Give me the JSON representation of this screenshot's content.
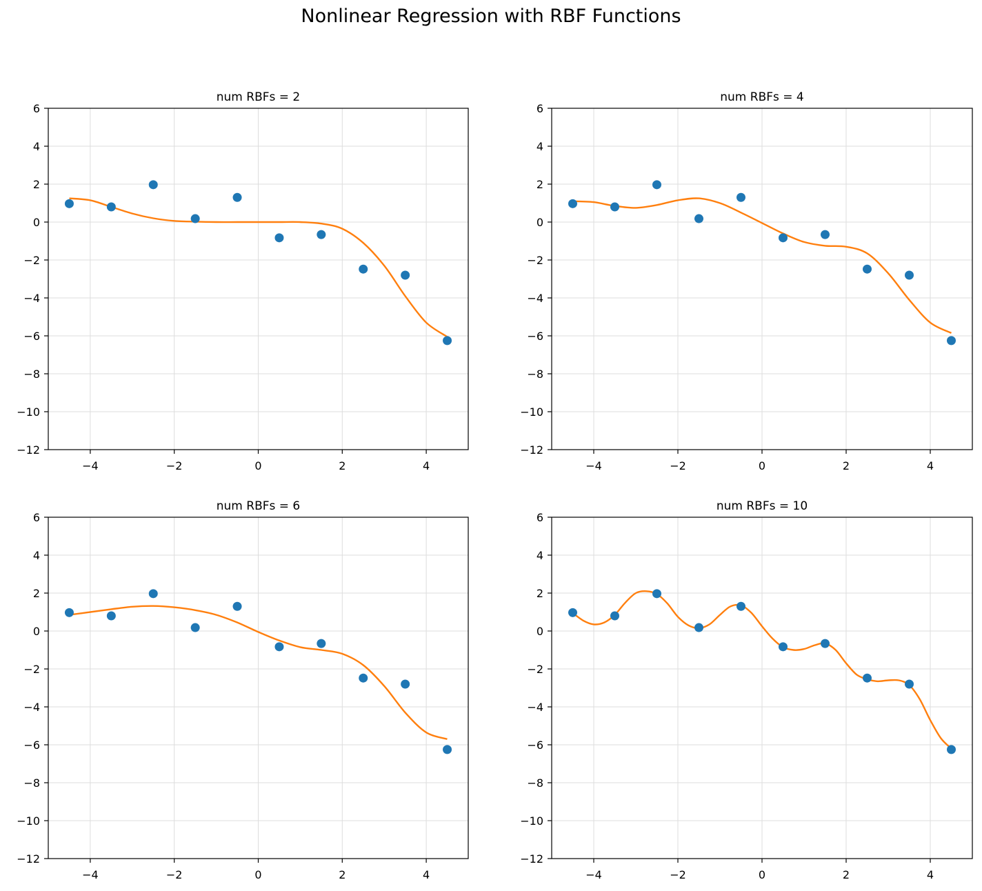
{
  "figure": {
    "title": "Nonlinear Regression with RBF Functions"
  },
  "colors": {
    "points": "#1f77b4",
    "fit_line": "#ff7f0e",
    "grid": "#dddddd",
    "axes": "#000000"
  },
  "chart_data": [
    {
      "type": "line",
      "title": "num RBFs = 2",
      "xlim": [
        -5,
        5
      ],
      "ylim": [
        -12,
        6
      ],
      "xticks": [
        -4,
        -2,
        0,
        2,
        4
      ],
      "yticks": [
        -12,
        -10,
        -8,
        -6,
        -4,
        -2,
        0,
        2,
        4,
        6
      ],
      "grid": true,
      "series": [
        {
          "kind": "scatter",
          "x": [
            -4.5,
            -3.5,
            -2.5,
            -1.5,
            -0.5,
            0.5,
            1.5,
            2.5,
            3.5,
            4.5
          ],
          "y": [
            0.97,
            0.8,
            1.97,
            0.18,
            1.3,
            -0.83,
            -0.66,
            -2.48,
            -2.8,
            -6.25
          ]
        },
        {
          "kind": "line",
          "x": [
            -4.5,
            -4.0,
            -3.5,
            -3.0,
            -2.5,
            -2.0,
            -1.5,
            -1.0,
            -0.5,
            0.0,
            0.5,
            1.0,
            1.5,
            2.0,
            2.5,
            3.0,
            3.5,
            4.0,
            4.5
          ],
          "y": [
            1.25,
            1.15,
            0.8,
            0.45,
            0.2,
            0.06,
            0.02,
            0.0,
            0.0,
            0.0,
            0.0,
            0.0,
            -0.08,
            -0.35,
            -1.1,
            -2.3,
            -3.9,
            -5.3,
            -6.05
          ]
        }
      ]
    },
    {
      "type": "line",
      "title": "num RBFs = 4",
      "xlim": [
        -5,
        5
      ],
      "ylim": [
        -12,
        6
      ],
      "xticks": [
        -4,
        -2,
        0,
        2,
        4
      ],
      "yticks": [
        -12,
        -10,
        -8,
        -6,
        -4,
        -2,
        0,
        2,
        4,
        6
      ],
      "grid": true,
      "series": [
        {
          "kind": "scatter",
          "x": [
            -4.5,
            -3.5,
            -2.5,
            -1.5,
            -0.5,
            0.5,
            1.5,
            2.5,
            3.5,
            4.5
          ],
          "y": [
            0.97,
            0.8,
            1.97,
            0.18,
            1.3,
            -0.83,
            -0.66,
            -2.48,
            -2.8,
            -6.25
          ]
        },
        {
          "kind": "line",
          "x": [
            -4.5,
            -4.0,
            -3.5,
            -3.0,
            -2.5,
            -2.0,
            -1.5,
            -1.0,
            -0.5,
            0.0,
            0.5,
            1.0,
            1.5,
            2.0,
            2.5,
            3.0,
            3.5,
            4.0,
            4.5
          ],
          "y": [
            1.1,
            1.05,
            0.85,
            0.75,
            0.9,
            1.15,
            1.25,
            1.0,
            0.5,
            -0.05,
            -0.6,
            -1.05,
            -1.25,
            -1.3,
            -1.65,
            -2.7,
            -4.1,
            -5.3,
            -5.85
          ]
        }
      ]
    },
    {
      "type": "line",
      "title": "num RBFs = 6",
      "xlim": [
        -5,
        5
      ],
      "ylim": [
        -12,
        6
      ],
      "xticks": [
        -4,
        -2,
        0,
        2,
        4
      ],
      "yticks": [
        -12,
        -10,
        -8,
        -6,
        -4,
        -2,
        0,
        2,
        4,
        6
      ],
      "grid": true,
      "series": [
        {
          "kind": "scatter",
          "x": [
            -4.5,
            -3.5,
            -2.5,
            -1.5,
            -0.5,
            0.5,
            1.5,
            2.5,
            3.5,
            4.5
          ],
          "y": [
            0.97,
            0.8,
            1.97,
            0.18,
            1.3,
            -0.83,
            -0.66,
            -2.48,
            -2.8,
            -6.25
          ]
        },
        {
          "kind": "line",
          "x": [
            -4.5,
            -4.0,
            -3.5,
            -3.0,
            -2.5,
            -2.0,
            -1.5,
            -1.0,
            -0.5,
            0.0,
            0.5,
            1.0,
            1.5,
            2.0,
            2.5,
            3.0,
            3.5,
            4.0,
            4.5
          ],
          "y": [
            0.85,
            1.0,
            1.15,
            1.28,
            1.32,
            1.25,
            1.1,
            0.85,
            0.45,
            -0.05,
            -0.5,
            -0.85,
            -1.0,
            -1.2,
            -1.8,
            -2.9,
            -4.3,
            -5.35,
            -5.7
          ]
        }
      ]
    },
    {
      "type": "line",
      "title": "num RBFs = 10",
      "xlim": [
        -5,
        5
      ],
      "ylim": [
        -12,
        6
      ],
      "xticks": [
        -4,
        -2,
        0,
        2,
        4
      ],
      "yticks": [
        -12,
        -10,
        -8,
        -6,
        -4,
        -2,
        0,
        2,
        4,
        6
      ],
      "grid": true,
      "series": [
        {
          "kind": "scatter",
          "x": [
            -4.5,
            -3.5,
            -2.5,
            -1.5,
            -0.5,
            0.5,
            1.5,
            2.5,
            3.5,
            4.5
          ],
          "y": [
            0.97,
            0.8,
            1.97,
            0.18,
            1.3,
            -0.83,
            -0.66,
            -2.48,
            -2.8,
            -6.25
          ]
        },
        {
          "kind": "line",
          "x": [
            -4.5,
            -4.25,
            -4.0,
            -3.75,
            -3.5,
            -3.25,
            -3.0,
            -2.75,
            -2.5,
            -2.25,
            -2.0,
            -1.75,
            -1.5,
            -1.25,
            -1.0,
            -0.75,
            -0.5,
            -0.25,
            0.0,
            0.25,
            0.5,
            0.75,
            1.0,
            1.25,
            1.5,
            1.75,
            2.0,
            2.25,
            2.5,
            2.75,
            3.0,
            3.25,
            3.5,
            3.75,
            4.0,
            4.25,
            4.5
          ],
          "y": [
            0.95,
            0.55,
            0.35,
            0.45,
            0.85,
            1.5,
            2.0,
            2.1,
            1.95,
            1.45,
            0.75,
            0.3,
            0.15,
            0.35,
            0.85,
            1.3,
            1.35,
            0.95,
            0.25,
            -0.4,
            -0.85,
            -1.0,
            -0.95,
            -0.75,
            -0.65,
            -1.0,
            -1.7,
            -2.3,
            -2.55,
            -2.65,
            -2.6,
            -2.6,
            -2.85,
            -3.6,
            -4.7,
            -5.65,
            -6.2
          ]
        }
      ]
    }
  ]
}
